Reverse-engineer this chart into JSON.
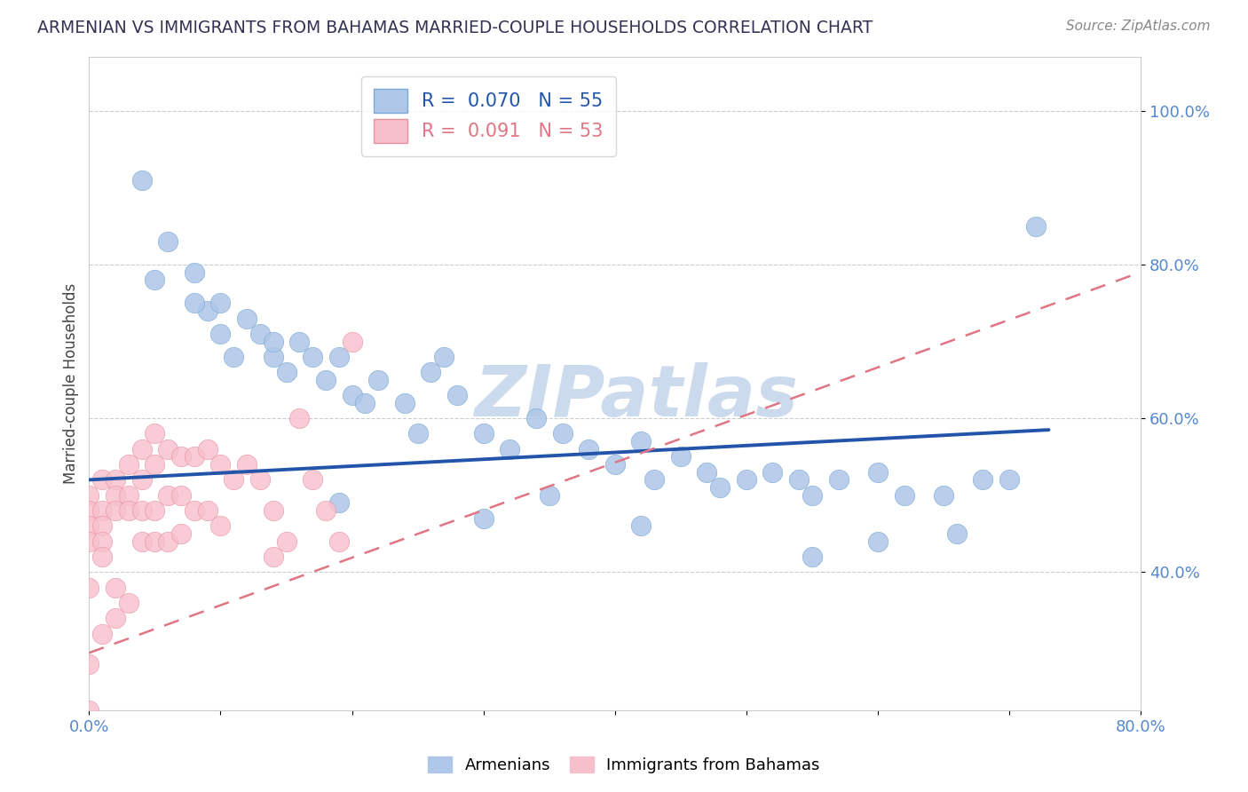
{
  "title": "ARMENIAN VS IMMIGRANTS FROM BAHAMAS MARRIED-COUPLE HOUSEHOLDS CORRELATION CHART",
  "source_text": "Source: ZipAtlas.com",
  "ylabel": "Married-couple Households",
  "xlim": [
    0.0,
    0.8
  ],
  "ylim": [
    0.22,
    1.07
  ],
  "yticks": [
    0.4,
    0.6,
    0.8,
    1.0
  ],
  "yticklabels": [
    "40.0%",
    "60.0%",
    "80.0%",
    "100.0%"
  ],
  "series1_name": "Armenians",
  "series1_R": "0.070",
  "series1_N": "55",
  "series1_color": "#aec6e8",
  "series1_edge_color": "#7baad4",
  "series1_line_color": "#2255aa",
  "series2_name": "Immigrants from Bahamas",
  "series2_R": "0.091",
  "series2_N": "53",
  "series2_color": "#f7bfcc",
  "series2_edge_color": "#e8909f",
  "series2_line_color": "#e07585",
  "background_color": "#ffffff",
  "grid_color": "#cccccc",
  "watermark": "ZIPatlas",
  "watermark_color": "#ccdaee",
  "title_color": "#333355",
  "axis_label_color": "#444444",
  "tick_color": "#5588cc",
  "legend_edge_color": "#cccccc",
  "series1_line_y0": 0.52,
  "series1_line_y1": 0.585,
  "series1_line_x0": 0.0,
  "series1_line_x1": 0.73,
  "series2_line_y0": 0.295,
  "series2_line_y1": 0.79,
  "series2_line_x0": 0.0,
  "series2_line_x1": 0.8,
  "s1_x": [
    0.04,
    0.06,
    0.08,
    0.09,
    0.1,
    0.11,
    0.12,
    0.13,
    0.14,
    0.15,
    0.16,
    0.18,
    0.19,
    0.2,
    0.22,
    0.24,
    0.26,
    0.27,
    0.28,
    0.3,
    0.32,
    0.34,
    0.36,
    0.38,
    0.4,
    0.42,
    0.43,
    0.45,
    0.47,
    0.48,
    0.5,
    0.52,
    0.54,
    0.55,
    0.57,
    0.6,
    0.62,
    0.65,
    0.68,
    0.7,
    0.72,
    0.05,
    0.08,
    0.1,
    0.14,
    0.17,
    0.21,
    0.25,
    0.19,
    0.3,
    0.35,
    0.42,
    0.55,
    0.6,
    0.66
  ],
  "s1_y": [
    0.91,
    0.83,
    0.79,
    0.74,
    0.71,
    0.68,
    0.73,
    0.71,
    0.68,
    0.66,
    0.7,
    0.65,
    0.68,
    0.63,
    0.65,
    0.62,
    0.66,
    0.68,
    0.63,
    0.58,
    0.56,
    0.6,
    0.58,
    0.56,
    0.54,
    0.57,
    0.52,
    0.55,
    0.53,
    0.51,
    0.52,
    0.53,
    0.52,
    0.5,
    0.52,
    0.53,
    0.5,
    0.5,
    0.52,
    0.52,
    0.85,
    0.78,
    0.75,
    0.75,
    0.7,
    0.68,
    0.62,
    0.58,
    0.49,
    0.47,
    0.5,
    0.46,
    0.42,
    0.44,
    0.45
  ],
  "s2_x": [
    0.0,
    0.0,
    0.0,
    0.0,
    0.0,
    0.01,
    0.01,
    0.01,
    0.01,
    0.01,
    0.02,
    0.02,
    0.02,
    0.02,
    0.03,
    0.03,
    0.03,
    0.03,
    0.04,
    0.04,
    0.04,
    0.04,
    0.05,
    0.05,
    0.05,
    0.05,
    0.06,
    0.06,
    0.06,
    0.07,
    0.07,
    0.07,
    0.08,
    0.08,
    0.09,
    0.09,
    0.1,
    0.1,
    0.11,
    0.12,
    0.13,
    0.14,
    0.14,
    0.15,
    0.16,
    0.17,
    0.18,
    0.19,
    0.2,
    0.0,
    0.01,
    0.02,
    0.0
  ],
  "s2_y": [
    0.5,
    0.48,
    0.46,
    0.44,
    0.28,
    0.52,
    0.48,
    0.46,
    0.44,
    0.42,
    0.52,
    0.5,
    0.48,
    0.38,
    0.54,
    0.5,
    0.48,
    0.36,
    0.56,
    0.52,
    0.48,
    0.44,
    0.58,
    0.54,
    0.48,
    0.44,
    0.56,
    0.5,
    0.44,
    0.55,
    0.5,
    0.45,
    0.55,
    0.48,
    0.56,
    0.48,
    0.54,
    0.46,
    0.52,
    0.54,
    0.52,
    0.48,
    0.42,
    0.44,
    0.6,
    0.52,
    0.48,
    0.44,
    0.7,
    0.22,
    0.32,
    0.34,
    0.38
  ]
}
